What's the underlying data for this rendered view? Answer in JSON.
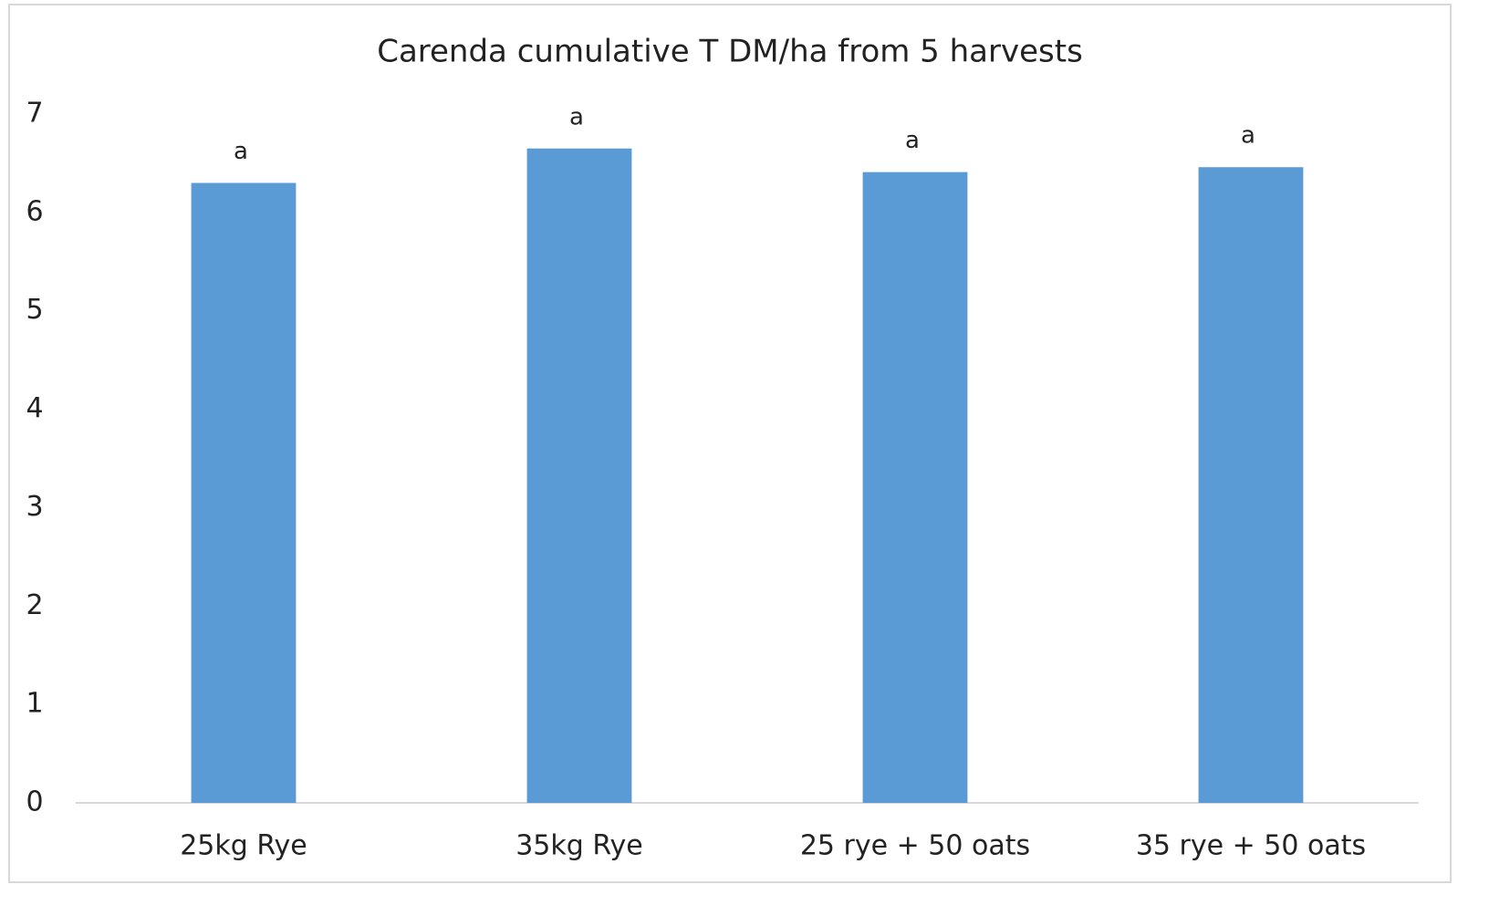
{
  "chart_data": {
    "type": "bar",
    "title": "Carenda cumulative T DM/ha from 5 harvests",
    "categories": [
      "25kg Rye",
      "35kg Rye",
      "25 rye + 50 oats",
      "35 rye + 50 oats"
    ],
    "values": [
      6.3,
      6.65,
      6.41,
      6.46
    ],
    "annotations": [
      "a",
      "a",
      "a",
      "a"
    ],
    "color": "#5b9bd5",
    "ylim": [
      0,
      7
    ],
    "yticks": [
      0,
      1,
      2,
      3,
      4,
      5,
      6,
      7
    ],
    "grid": false
  }
}
